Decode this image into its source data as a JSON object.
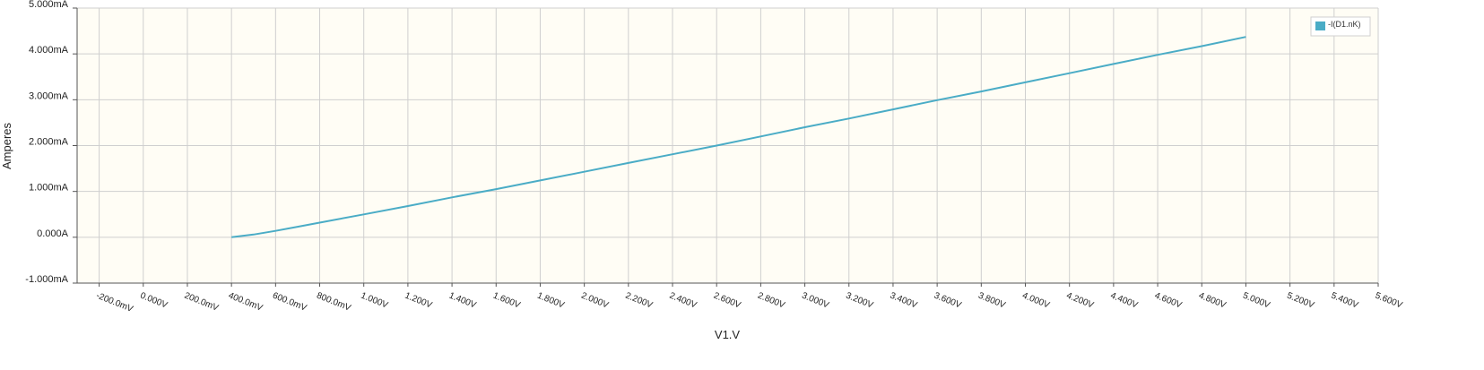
{
  "chart_data": {
    "type": "line",
    "title": "",
    "xlabel": "V1.V",
    "ylabel": "Amperes",
    "xlim": [
      -0.3,
      5.6
    ],
    "ylim": [
      -1.0,
      5.0
    ],
    "x_ticks": [
      -0.2,
      0.0,
      0.2,
      0.4,
      0.6,
      0.8,
      1.0,
      1.2,
      1.4,
      1.6,
      1.8,
      2.0,
      2.2,
      2.4,
      2.6,
      2.8,
      3.0,
      3.2,
      3.4,
      3.6,
      3.8,
      4.0,
      4.2,
      4.4,
      4.6,
      4.8,
      5.0,
      5.2,
      5.4,
      5.6
    ],
    "x_tick_labels": [
      "-200.0mV",
      "0.000V",
      "200.0mV",
      "400.0mV",
      "600.0mV",
      "800.0mV",
      "1.000V",
      "1.200V",
      "1.400V",
      "1.600V",
      "1.800V",
      "2.000V",
      "2.200V",
      "2.400V",
      "2.600V",
      "2.800V",
      "3.000V",
      "3.200V",
      "3.400V",
      "3.600V",
      "3.800V",
      "4.000V",
      "4.200V",
      "4.400V",
      "4.600V",
      "4.800V",
      "5.000V",
      "5.200V",
      "5.400V",
      "5.600V"
    ],
    "y_ticks": [
      -1.0,
      0.0,
      1.0,
      2.0,
      3.0,
      4.0,
      5.0
    ],
    "y_tick_labels": [
      "-1.000mA",
      "0.000A",
      "1.000mA",
      "2.000mA",
      "3.000mA",
      "4.000mA",
      "5.000mA"
    ],
    "grid": true,
    "legend_position": "top-right",
    "background_color": "#fffdf5",
    "grid_color": "#cfcfcf",
    "series": [
      {
        "name": "-I(D1.nK)",
        "color": "#4aacc6",
        "x": [
          0.4,
          0.5,
          0.6,
          0.7,
          0.8,
          1.0,
          1.2,
          1.4,
          1.6,
          1.8,
          2.0,
          2.2,
          2.4,
          2.6,
          2.8,
          3.0,
          3.2,
          3.4,
          3.6,
          3.8,
          4.0,
          4.2,
          4.4,
          4.6,
          4.8,
          5.0
        ],
        "y": [
          0.0,
          0.06,
          0.14,
          0.23,
          0.32,
          0.5,
          0.68,
          0.87,
          1.05,
          1.24,
          1.43,
          1.62,
          1.81,
          2.0,
          2.2,
          2.4,
          2.59,
          2.79,
          2.99,
          3.18,
          3.38,
          3.58,
          3.78,
          3.98,
          4.17,
          4.37
        ]
      }
    ]
  }
}
